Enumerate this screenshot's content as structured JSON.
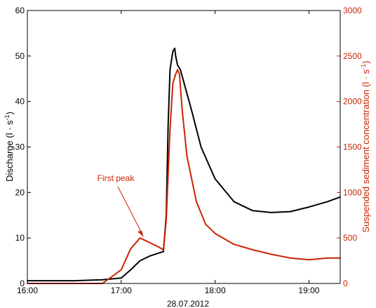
{
  "chart_data": {
    "type": "line",
    "title": "",
    "xlabel": "28.07.2012",
    "x_unit": "time of day (hours)",
    "xlim": [
      16.0,
      19.333
    ],
    "x_ticks": [
      {
        "value": 16,
        "label": "16:00"
      },
      {
        "value": 17,
        "label": "17:00"
      },
      {
        "value": 18,
        "label": "18:00"
      },
      {
        "value": 19,
        "label": "19:00"
      }
    ],
    "left_axis": {
      "label": "Discharge (l · s",
      "label_sup": "-1",
      "label_tail": ")",
      "ylim": [
        0,
        60
      ],
      "ticks": [
        "0",
        "10",
        "20",
        "30",
        "40",
        "50",
        "60"
      ],
      "color": "#000000"
    },
    "right_axis": {
      "label": "Suspended sediment concentration (l · s",
      "label_sup": "-1",
      "label_tail": ")",
      "ylim": [
        0,
        3000
      ],
      "ticks": [
        "0",
        "500",
        "1000",
        "1500",
        "2000",
        "2500",
        "3000"
      ],
      "color": "#cc2200"
    },
    "grid": false,
    "series": [
      {
        "axis": "left",
        "color": "#000000",
        "x": [
          16.0,
          16.5,
          16.8,
          17.0,
          17.1,
          17.2,
          17.3,
          17.45,
          17.48,
          17.5,
          17.52,
          17.55,
          17.57,
          17.58,
          17.6,
          17.63,
          17.67,
          17.75,
          17.85,
          18.0,
          18.2,
          18.4,
          18.6,
          18.8,
          19.0,
          19.2,
          19.333
        ],
        "y": [
          0.6,
          0.6,
          0.8,
          1.2,
          3.0,
          5.0,
          6.0,
          7.0,
          15.0,
          35.0,
          47.0,
          51.0,
          51.7,
          50.0,
          48.0,
          47.0,
          44.0,
          38.0,
          30.0,
          23.0,
          18.0,
          16.0,
          15.6,
          15.8,
          16.8,
          18.0,
          19.0
        ]
      },
      {
        "axis": "right",
        "color": "#cc2200",
        "x": [
          16.0,
          16.8,
          17.0,
          17.1,
          17.2,
          17.3,
          17.4,
          17.45,
          17.48,
          17.52,
          17.55,
          17.58,
          17.6,
          17.62,
          17.65,
          17.7,
          17.8,
          17.9,
          18.0,
          18.2,
          18.4,
          18.6,
          18.8,
          19.0,
          19.2,
          19.333
        ],
        "y": [
          0,
          0,
          150,
          380,
          500,
          450,
          400,
          370,
          700,
          1700,
          2200,
          2300,
          2350,
          2300,
          1900,
          1400,
          900,
          650,
          550,
          430,
          370,
          320,
          280,
          260,
          280,
          280
        ]
      }
    ],
    "annotations": [
      {
        "text": "First peak",
        "x": 17.2,
        "y_left": 10,
        "color": "#cc2200"
      }
    ]
  }
}
